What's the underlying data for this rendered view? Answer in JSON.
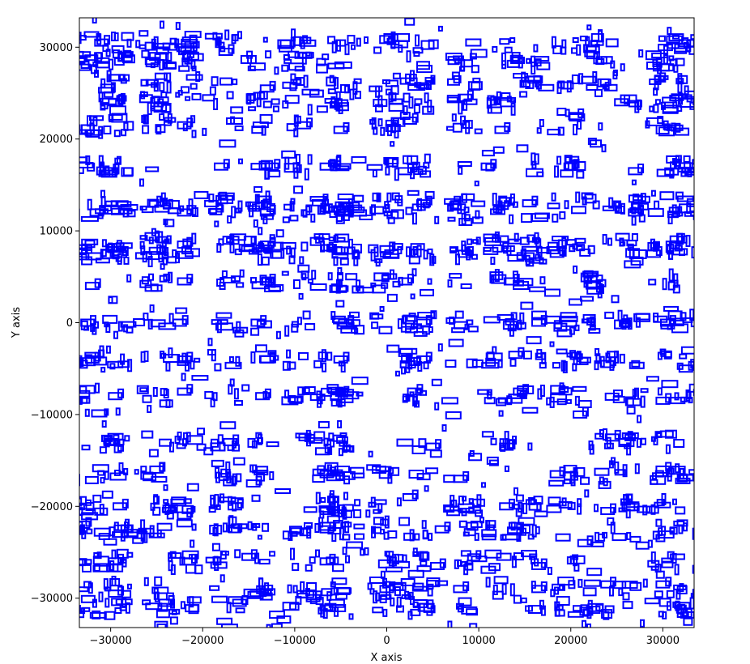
{
  "chart_data": {
    "type": "scatter",
    "title": "",
    "xlabel": "X axis",
    "ylabel": "Y axis",
    "xlim": [
      -33400,
      33400
    ],
    "ylim": [
      -33200,
      33200
    ],
    "x_ticks": [
      -30000,
      -20000,
      -10000,
      0,
      10000,
      20000,
      30000
    ],
    "y_ticks": [
      -30000,
      -20000,
      -10000,
      0,
      10000,
      20000,
      30000
    ],
    "x_tick_labels": [
      "−30000",
      "−20000",
      "−10000",
      "0",
      "10000",
      "20000",
      "30000"
    ],
    "y_tick_labels": [
      "−30000",
      "−20000",
      "−10000",
      "0",
      "10000",
      "20000",
      "30000"
    ],
    "grid": false,
    "legend": "none",
    "marker": "hollow-rectangle",
    "box_color": "#0000ff",
    "cluster_rows_y": [
      30500,
      28500,
      26000,
      24000,
      21500,
      17000,
      13000,
      12000,
      8500,
      7500,
      4500,
      0,
      -4000,
      -8000,
      -13000,
      -16500,
      -20000,
      -22500,
      -26000,
      -29000,
      -31000
    ],
    "cluster_cols_x": [
      -32500,
      -29500,
      -25000,
      -22000,
      -17500,
      -13500,
      -9500,
      -6000,
      -4500,
      0,
      3500,
      8500,
      12500,
      15500,
      19500,
      23000,
      26500,
      30500,
      33000
    ],
    "sample_boxes": [
      {
        "x": -31000,
        "y": 30500
      },
      {
        "x": -29500,
        "y": 24000
      },
      {
        "x": -25500,
        "y": 28500
      },
      {
        "x": -22000,
        "y": 21500
      },
      {
        "x": -17500,
        "y": 29500
      },
      {
        "x": -13000,
        "y": 25500
      },
      {
        "x": -9000,
        "y": 21500
      },
      {
        "x": -5000,
        "y": 21000
      },
      {
        "x": 2500,
        "y": 22000
      },
      {
        "x": 8500,
        "y": 24500
      },
      {
        "x": 12500,
        "y": 21000
      },
      {
        "x": 20500,
        "y": 22500
      },
      {
        "x": 25500,
        "y": 24000
      },
      {
        "x": 29000,
        "y": 28000
      },
      {
        "x": -30000,
        "y": 16500
      },
      {
        "x": -18000,
        "y": 17000
      },
      {
        "x": -12500,
        "y": 17000
      },
      {
        "x": -6500,
        "y": 17000
      },
      {
        "x": 2000,
        "y": 16500
      },
      {
        "x": 11000,
        "y": 17000
      },
      {
        "x": 20000,
        "y": 17000
      },
      {
        "x": 27000,
        "y": 16500
      },
      {
        "x": -31500,
        "y": 12000
      },
      {
        "x": -22000,
        "y": 12000
      },
      {
        "x": -13000,
        "y": 12000
      },
      {
        "x": -4500,
        "y": 12000
      },
      {
        "x": 4000,
        "y": 13000
      },
      {
        "x": 15500,
        "y": 13000
      },
      {
        "x": 27000,
        "y": 12000
      },
      {
        "x": -29000,
        "y": 7500
      },
      {
        "x": -22000,
        "y": 8500
      },
      {
        "x": -13000,
        "y": 8500
      },
      {
        "x": 0,
        "y": 8000
      },
      {
        "x": 8500,
        "y": 7500
      },
      {
        "x": 18500,
        "y": 7500
      },
      {
        "x": 29000,
        "y": 7500
      },
      {
        "x": -32000,
        "y": 4000
      },
      {
        "x": -22000,
        "y": 4500
      },
      {
        "x": -13000,
        "y": 4500
      },
      {
        "x": 2000,
        "y": 4500
      },
      {
        "x": 13500,
        "y": 4500
      },
      {
        "x": 22500,
        "y": 3500
      },
      {
        "x": -32500,
        "y": 0
      },
      {
        "x": -22500,
        "y": 0
      },
      {
        "x": -14000,
        "y": 0
      },
      {
        "x": -4500,
        "y": 0
      },
      {
        "x": 4000,
        "y": 0
      },
      {
        "x": 16500,
        "y": 0
      },
      {
        "x": 30500,
        "y": 0
      },
      {
        "x": -32000,
        "y": -4000
      },
      {
        "x": -22000,
        "y": -4000
      },
      {
        "x": -13000,
        "y": -4000
      },
      {
        "x": -5000,
        "y": -4000
      },
      {
        "x": 4000,
        "y": -4000
      },
      {
        "x": 14000,
        "y": -3500
      },
      {
        "x": 24000,
        "y": -4500
      },
      {
        "x": 32500,
        "y": -5000
      },
      {
        "x": -29500,
        "y": -8000
      },
      {
        "x": -22000,
        "y": -7500
      },
      {
        "x": -13500,
        "y": -8000
      },
      {
        "x": 3000,
        "y": -7500
      },
      {
        "x": 14500,
        "y": -7500
      },
      {
        "x": 21000,
        "y": -10000
      },
      {
        "x": 30000,
        "y": -8500
      },
      {
        "x": -30000,
        "y": -13000
      },
      {
        "x": -17000,
        "y": -13000
      },
      {
        "x": -7000,
        "y": -14000
      },
      {
        "x": 5000,
        "y": -13500
      },
      {
        "x": 13000,
        "y": -13500
      },
      {
        "x": 24500,
        "y": -12500
      },
      {
        "x": -25000,
        "y": -16000
      },
      {
        "x": -14500,
        "y": -17500
      },
      {
        "x": -6500,
        "y": -16500
      },
      {
        "x": 8000,
        "y": -17000
      },
      {
        "x": 18500,
        "y": -16500
      },
      {
        "x": 30000,
        "y": -16000
      },
      {
        "x": -29000,
        "y": -20000
      },
      {
        "x": -22000,
        "y": -21000
      },
      {
        "x": -16500,
        "y": -20000
      },
      {
        "x": -6500,
        "y": -20500
      },
      {
        "x": 2500,
        "y": -19000
      },
      {
        "x": 13000,
        "y": -20000
      },
      {
        "x": 24000,
        "y": -20500
      },
      {
        "x": -33000,
        "y": -22000
      },
      {
        "x": -6500,
        "y": -22500
      },
      {
        "x": 6000,
        "y": -22500
      },
      {
        "x": 21500,
        "y": -24000
      },
      {
        "x": -29500,
        "y": -26000
      },
      {
        "x": -21500,
        "y": -26000
      },
      {
        "x": -15000,
        "y": -25500
      },
      {
        "x": -6500,
        "y": -26000
      },
      {
        "x": 5500,
        "y": -26500
      },
      {
        "x": 16500,
        "y": -26500
      },
      {
        "x": -29500,
        "y": -29500
      },
      {
        "x": -24000,
        "y": -30500
      },
      {
        "x": -16000,
        "y": -30500
      },
      {
        "x": -8000,
        "y": -30000
      },
      {
        "x": 0,
        "y": -29000
      },
      {
        "x": 8000,
        "y": -29000
      },
      {
        "x": 16500,
        "y": -29000
      },
      {
        "x": 24000,
        "y": -28500
      },
      {
        "x": 30000,
        "y": -28500
      }
    ]
  }
}
